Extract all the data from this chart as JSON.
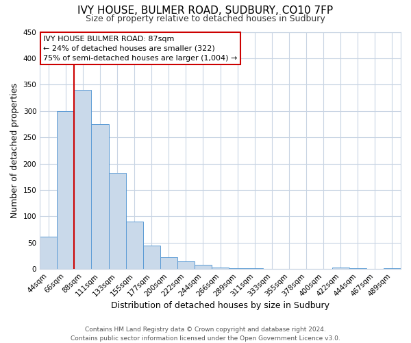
{
  "title": "IVY HOUSE, BULMER ROAD, SUDBURY, CO10 7FP",
  "subtitle": "Size of property relative to detached houses in Sudbury",
  "xlabel": "Distribution of detached houses by size in Sudbury",
  "ylabel": "Number of detached properties",
  "bar_labels": [
    "44sqm",
    "66sqm",
    "88sqm",
    "111sqm",
    "133sqm",
    "155sqm",
    "177sqm",
    "200sqm",
    "222sqm",
    "244sqm",
    "266sqm",
    "289sqm",
    "311sqm",
    "333sqm",
    "355sqm",
    "378sqm",
    "400sqm",
    "422sqm",
    "444sqm",
    "467sqm",
    "489sqm"
  ],
  "bar_heights": [
    62,
    300,
    340,
    275,
    183,
    90,
    45,
    23,
    15,
    8,
    3,
    1,
    1,
    0,
    0,
    0,
    0,
    3,
    2,
    0,
    2
  ],
  "bar_color": "#c9d9ea",
  "bar_edge_color": "#5b9bd5",
  "ylim": [
    0,
    450
  ],
  "yticks": [
    0,
    50,
    100,
    150,
    200,
    250,
    300,
    350,
    400,
    450
  ],
  "vline_x": 1.5,
  "vline_color": "#cc0000",
  "ann_line1": "IVY HOUSE BULMER ROAD: 87sqm",
  "ann_line2": "← 24% of detached houses are smaller (322)",
  "ann_line3": "75% of semi-detached houses are larger (1,004) →",
  "annotation_box_color": "#ffffff",
  "annotation_box_edge_color": "#cc0000",
  "footer_line1": "Contains HM Land Registry data © Crown copyright and database right 2024.",
  "footer_line2": "Contains public sector information licensed under the Open Government Licence v3.0.",
  "background_color": "#ffffff",
  "grid_color": "#c8d4e3",
  "title_fontsize": 11,
  "subtitle_fontsize": 9,
  "axis_label_fontsize": 9,
  "tick_fontsize": 7.5,
  "footer_fontsize": 6.5,
  "ann_fontsize": 8
}
